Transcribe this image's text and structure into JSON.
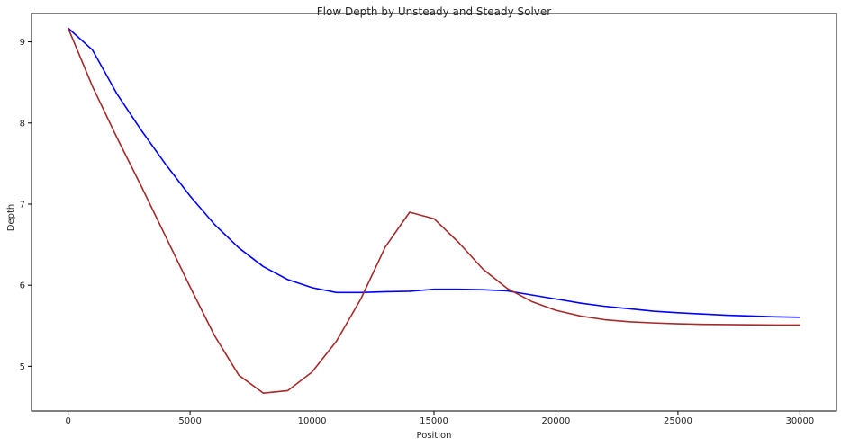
{
  "chart_data": {
    "type": "line",
    "title": "Flow Depth by Unsteady and Steady Solver",
    "xlabel": "Position",
    "ylabel": "Depth",
    "xlim": [
      -1500,
      31500
    ],
    "ylim": [
      4.45,
      9.35
    ],
    "xticks": [
      0,
      5000,
      10000,
      15000,
      20000,
      25000,
      30000
    ],
    "yticks": [
      5,
      6,
      7,
      8,
      9
    ],
    "grid": false,
    "x": [
      0,
      1000,
      2000,
      3000,
      4000,
      5000,
      6000,
      7000,
      8000,
      9000,
      10000,
      11000,
      12000,
      13000,
      14000,
      15000,
      16000,
      17000,
      18000,
      19000,
      20000,
      21000,
      22000,
      23000,
      24000,
      25000,
      26000,
      27000,
      28000,
      29000,
      30000
    ],
    "series": [
      {
        "color": "#0000ff",
        "values": [
          9.17,
          8.9,
          8.36,
          7.91,
          7.49,
          7.1,
          6.75,
          6.46,
          6.23,
          6.07,
          5.97,
          5.91,
          5.91,
          5.92,
          5.925,
          5.95,
          5.95,
          5.945,
          5.93,
          5.88,
          5.83,
          5.78,
          5.74,
          5.71,
          5.68,
          5.66,
          5.645,
          5.63,
          5.62,
          5.61,
          5.605
        ]
      },
      {
        "color": "#a52a2a",
        "values": [
          9.17,
          8.45,
          7.82,
          7.22,
          6.6,
          5.98,
          5.38,
          4.89,
          4.67,
          4.7,
          4.93,
          5.31,
          5.83,
          6.47,
          6.9,
          6.82,
          6.53,
          6.2,
          5.96,
          5.8,
          5.69,
          5.62,
          5.575,
          5.55,
          5.535,
          5.525,
          5.518,
          5.515,
          5.512,
          5.51,
          5.51
        ]
      }
    ]
  }
}
